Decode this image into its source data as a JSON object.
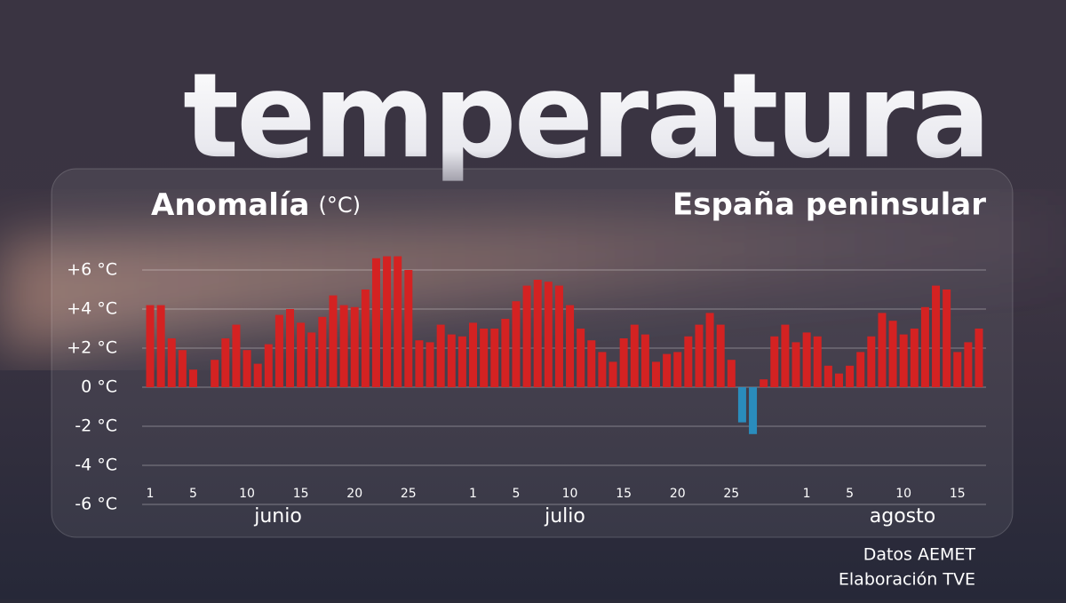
{
  "header": {
    "title": "temperatura"
  },
  "chart_data": {
    "type": "bar",
    "title": "Anomalía",
    "unit": "(°C)",
    "subtitle": "España peninsular",
    "categories": [
      "1",
      null,
      null,
      null,
      "5",
      null,
      null,
      null,
      null,
      "10",
      null,
      null,
      null,
      null,
      "15",
      null,
      null,
      null,
      null,
      "20",
      null,
      null,
      null,
      null,
      "25",
      null,
      null,
      null,
      null,
      null,
      "1",
      null,
      null,
      null,
      "5",
      null,
      null,
      null,
      null,
      "10",
      null,
      null,
      null,
      null,
      "15",
      null,
      null,
      null,
      null,
      "20",
      null,
      null,
      null,
      null,
      "25",
      null,
      null,
      null,
      null,
      null,
      null,
      "1",
      null,
      null,
      null,
      "5",
      null,
      null,
      null,
      null,
      "10",
      null,
      null,
      null,
      null,
      "15",
      null,
      null
    ],
    "months": [
      "junio",
      "julio",
      "agosto"
    ],
    "values": [
      4.2,
      4.2,
      2.5,
      1.9,
      0.9,
      null,
      1.4,
      2.5,
      3.2,
      1.9,
      1.2,
      2.2,
      3.7,
      4.0,
      3.3,
      2.8,
      3.6,
      4.7,
      4.2,
      4.1,
      5.0,
      6.6,
      6.7,
      6.7,
      6.0,
      2.4,
      2.3,
      3.2,
      2.7,
      2.6,
      3.3,
      3.0,
      3.0,
      3.5,
      4.4,
      5.2,
      5.5,
      5.4,
      5.2,
      4.2,
      3.0,
      2.4,
      1.8,
      1.3,
      2.5,
      3.2,
      2.7,
      1.3,
      1.7,
      1.8,
      2.6,
      3.2,
      3.8,
      3.2,
      1.4,
      -1.8,
      -2.4,
      0.4,
      2.6,
      3.2,
      2.3,
      2.8,
      2.6,
      1.1,
      0.7,
      1.1,
      1.8,
      2.6,
      3.8,
      3.4,
      2.7,
      3.0,
      4.1,
      5.2,
      5.0,
      1.8,
      2.3,
      3.0
    ],
    "color": "#d42222",
    "negative_color": "#2a8cbc",
    "ylim": [
      -6,
      6
    ],
    "yticks": [
      {
        "value": -6,
        "label": "-6 °C"
      },
      {
        "value": -4,
        "label": "-4 °C"
      },
      {
        "value": -2,
        "label": "-2 °C"
      },
      {
        "value": 0,
        "label": "0 °C"
      },
      {
        "value": 2,
        "label": "+2 °C"
      },
      {
        "value": 4,
        "label": "+4 °C"
      },
      {
        "value": 6,
        "label": "+6 °C"
      }
    ],
    "grid": true
  },
  "footer": {
    "source": "Datos AEMET",
    "credit": "Elaboración TVE"
  }
}
